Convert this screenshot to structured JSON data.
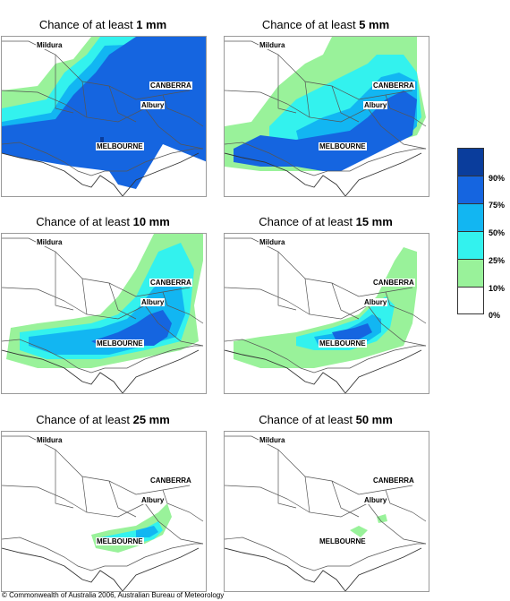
{
  "colors": {
    "p90": "#0a3d9c",
    "p75": "#1565e0",
    "p50": "#12b6f2",
    "p25": "#33f2ee",
    "p10": "#99f29a",
    "p0": "#ffffff"
  },
  "panels": [
    {
      "prefix": "Chance of at least ",
      "amount": "1 mm"
    },
    {
      "prefix": "Chance of at least ",
      "amount": "5 mm"
    },
    {
      "prefix": "Chance of at least ",
      "amount": "10 mm"
    },
    {
      "prefix": "Chance of at least ",
      "amount": "15 mm"
    },
    {
      "prefix": "Chance of at least ",
      "amount": "25 mm"
    },
    {
      "prefix": "Chance of at least ",
      "amount": "50 mm"
    }
  ],
  "cities": {
    "mildura": "Mildura",
    "canberra": "CANBERRA",
    "albury": "Albury",
    "melbourne": "MELBOURNE"
  },
  "legend": [
    "90%",
    "75%",
    "50%",
    "25%",
    "10%",
    "0%"
  ],
  "copyright": "© Commonwealth of Australia 2006, Australian Bureau of Meteorology"
}
